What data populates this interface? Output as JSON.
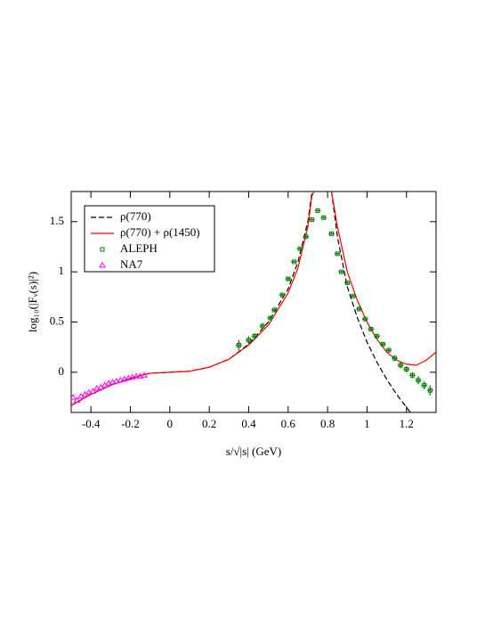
{
  "chart_data": {
    "type": "line",
    "xlabel": "s/√|s| (GeV)",
    "ylabel": "log₁₀(|Fᵥ(s)|²)",
    "xlim": [
      -0.5,
      1.35
    ],
    "ylim": [
      -0.4,
      1.8
    ],
    "xticks": [
      -0.4,
      -0.2,
      0,
      0.2,
      0.4,
      0.6,
      0.8,
      1,
      1.2
    ],
    "yticks": [
      0,
      0.5,
      1,
      1.5
    ],
    "legend": "upper left",
    "series": [
      {
        "name": "ρ(770)",
        "color": "#000000",
        "dash": true,
        "x": [
          -0.5,
          -0.4,
          -0.3,
          -0.2,
          -0.1,
          0,
          0.1,
          0.2,
          0.3,
          0.4,
          0.5,
          0.6,
          0.65,
          0.7,
          0.72,
          0.73,
          null,
          0.82,
          0.85,
          0.9,
          0.95,
          1.0,
          1.05,
          1.1,
          1.15,
          1.2,
          1.22
        ],
        "values": [
          -0.33,
          -0.22,
          -0.13,
          -0.06,
          -0.01,
          0,
          0.01,
          0.05,
          0.13,
          0.28,
          0.5,
          0.83,
          1.1,
          1.5,
          1.78,
          1.8,
          null,
          1.8,
          1.35,
          0.85,
          0.55,
          0.3,
          0.1,
          -0.07,
          -0.22,
          -0.35,
          -0.4
        ]
      },
      {
        "name": "ρ(770) + ρ(1450)",
        "color": "#ff0000",
        "x": [
          -0.5,
          -0.4,
          -0.3,
          -0.2,
          -0.1,
          0,
          0.1,
          0.2,
          0.3,
          0.4,
          0.5,
          0.6,
          0.65,
          0.7,
          0.72,
          0.73,
          null,
          0.82,
          0.85,
          0.9,
          0.95,
          1.0,
          1.05,
          1.1,
          1.15,
          1.2,
          1.25,
          1.3,
          1.35
        ],
        "values": [
          -0.33,
          -0.22,
          -0.13,
          -0.06,
          -0.01,
          0,
          0.01,
          0.05,
          0.13,
          0.27,
          0.47,
          0.79,
          1.04,
          1.45,
          1.75,
          1.8,
          null,
          1.8,
          1.45,
          1.0,
          0.72,
          0.5,
          0.33,
          0.2,
          0.12,
          0.08,
          0.07,
          0.12,
          0.2
        ]
      },
      {
        "name": "ALEPH",
        "color": "#008000",
        "marker": "square",
        "xerr": 0.015,
        "x": [
          0.35,
          0.4,
          0.43,
          0.47,
          0.51,
          0.53,
          0.57,
          0.6,
          0.63,
          0.66,
          0.69,
          0.72,
          0.75,
          0.78,
          0.82,
          0.85,
          0.87,
          0.9,
          0.93,
          0.96,
          0.99,
          1.02,
          1.05,
          1.08,
          1.11,
          1.14,
          1.17,
          1.2,
          1.23,
          1.26,
          1.29,
          1.32
        ],
        "values": [
          0.27,
          0.32,
          0.36,
          0.46,
          0.54,
          0.62,
          0.77,
          0.93,
          1.1,
          1.23,
          1.35,
          1.52,
          1.61,
          1.54,
          1.38,
          1.18,
          1.0,
          0.89,
          0.76,
          0.63,
          0.53,
          0.43,
          0.36,
          0.28,
          0.22,
          0.14,
          0.07,
          0.03,
          -0.03,
          -0.08,
          -0.13,
          -0.18
        ],
        "yerr": [
          0.05,
          0.04,
          0.03,
          0.03,
          0.02,
          0.02,
          0.02,
          0.02,
          0.01,
          0.01,
          0.01,
          0.01,
          0.01,
          0.01,
          0.01,
          0.01,
          0.01,
          0.01,
          0.01,
          0.02,
          0.02,
          0.02,
          0.02,
          0.02,
          0.02,
          0.03,
          0.03,
          0.03,
          0.03,
          0.04,
          0.04,
          0.05
        ]
      },
      {
        "name": "NA7",
        "color": "#ff00ff",
        "marker": "triangle",
        "x": [
          -0.49,
          -0.47,
          -0.45,
          -0.43,
          -0.41,
          -0.39,
          -0.37,
          -0.35,
          -0.33,
          -0.31,
          -0.29,
          -0.27,
          -0.25,
          -0.23,
          -0.21,
          -0.19,
          -0.17,
          -0.15,
          -0.13
        ],
        "values": [
          -0.25,
          -0.28,
          -0.24,
          -0.22,
          -0.2,
          -0.19,
          -0.16,
          -0.15,
          -0.13,
          -0.11,
          -0.1,
          -0.09,
          -0.08,
          -0.07,
          -0.06,
          -0.05,
          -0.04,
          -0.04,
          -0.03
        ]
      }
    ]
  }
}
